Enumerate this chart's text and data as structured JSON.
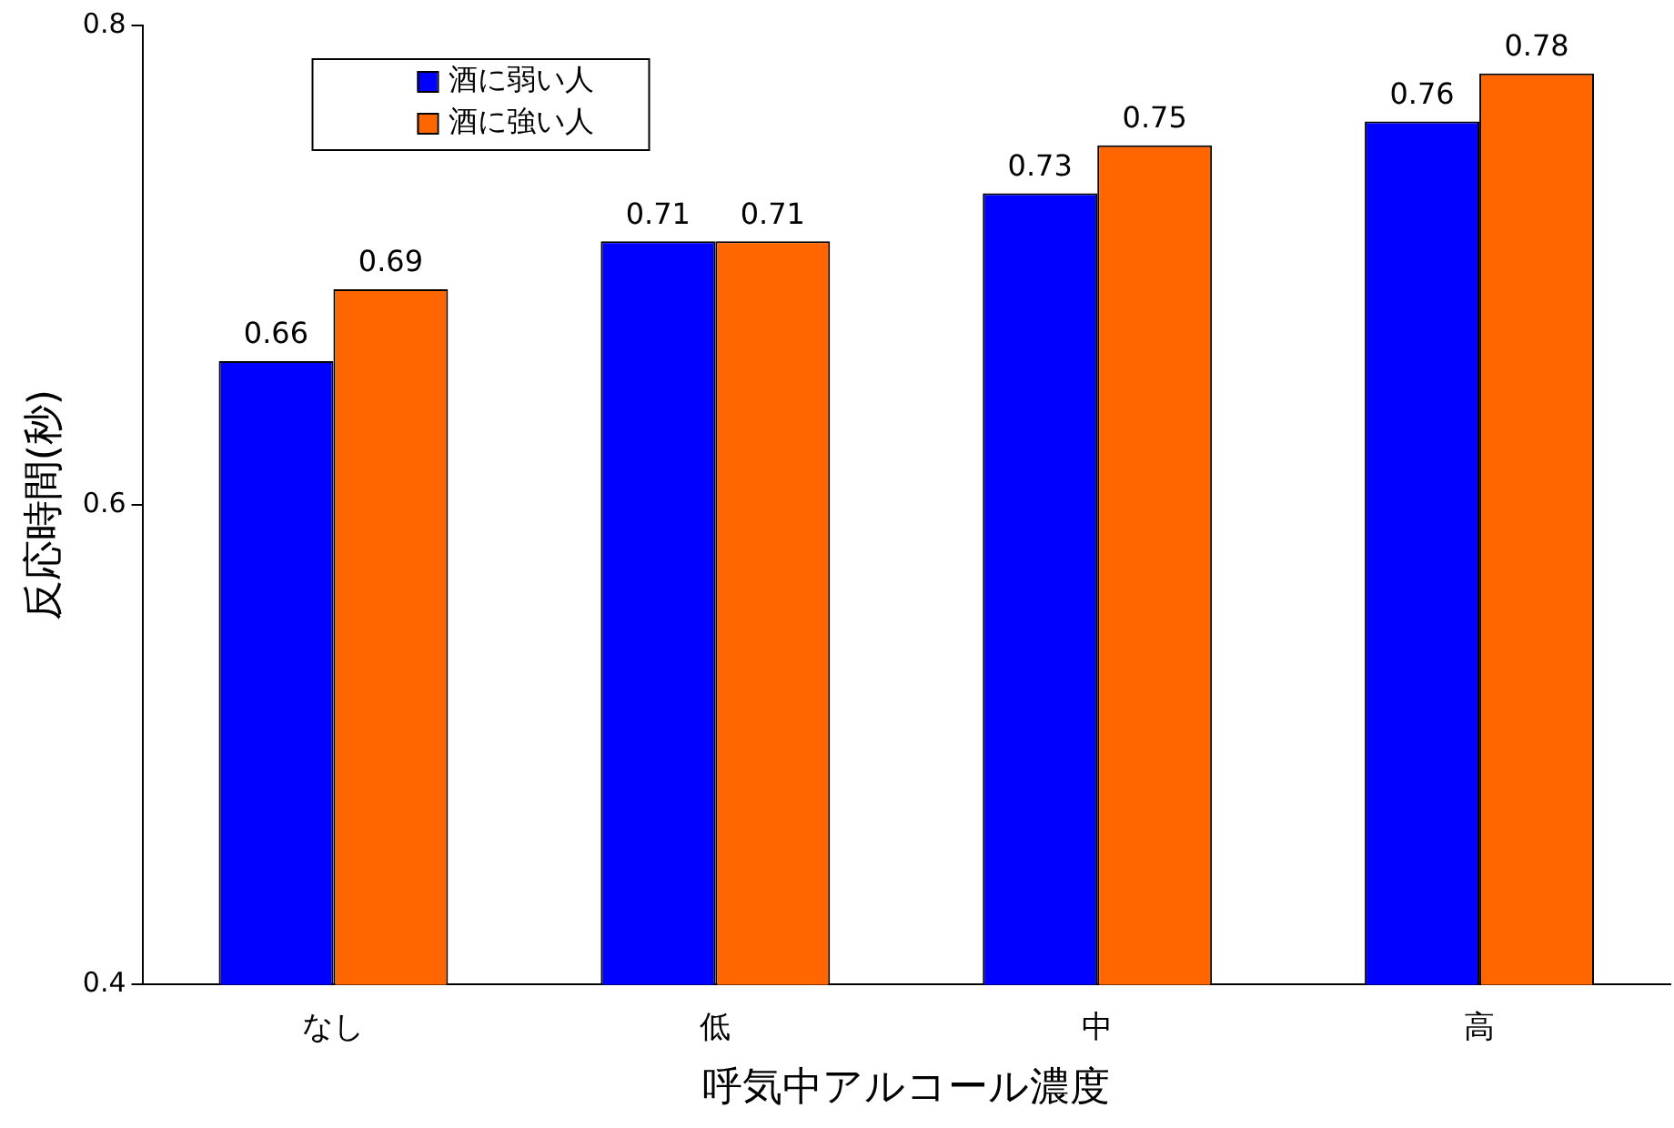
{
  "chart_data": {
    "type": "bar",
    "xlabel": "呼気中アルコール濃度",
    "ylabel": "反応時間(秒)",
    "categories": [
      "なし",
      "低",
      "中",
      "高"
    ],
    "series": [
      {
        "name": "酒に弱い人",
        "color": "#0000ff",
        "values": [
          0.66,
          0.71,
          0.73,
          0.76
        ]
      },
      {
        "name": "酒に強い人",
        "color": "#ff6600",
        "values": [
          0.69,
          0.71,
          0.75,
          0.78
        ]
      }
    ],
    "ylim": [
      0.4,
      0.8
    ],
    "yticks": [
      0.4,
      0.6,
      0.8
    ],
    "grid": false,
    "legend": "top left",
    "data_labels": true
  }
}
